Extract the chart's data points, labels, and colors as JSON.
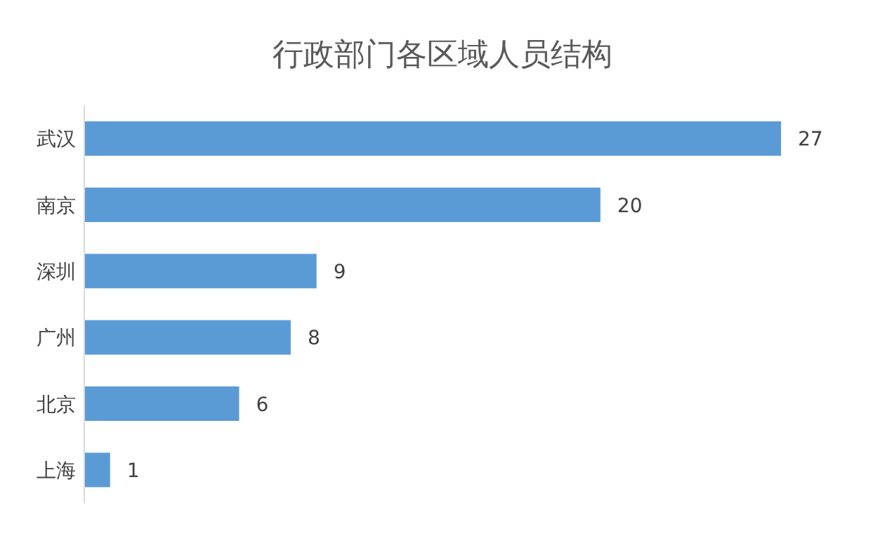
{
  "chart_data": {
    "type": "bar",
    "orientation": "horizontal",
    "title": "行政部门各区域人员结构",
    "categories": [
      "武汉",
      "南京",
      "深圳",
      "广州",
      "北京",
      "上海"
    ],
    "values": [
      27,
      20,
      9,
      8,
      6,
      1
    ],
    "color": "#5b9bd5",
    "data_labels": true
  }
}
